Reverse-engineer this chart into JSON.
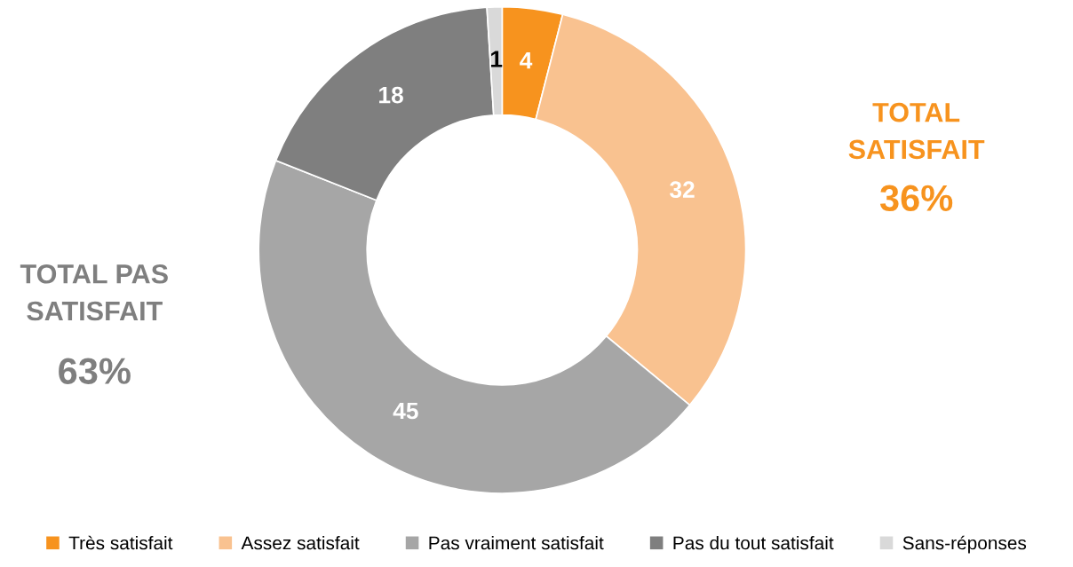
{
  "chart_data": {
    "type": "donut",
    "categories": [
      "Très satisfait",
      "Assez satisfait",
      "Pas vraiment satisfait",
      "Pas du tout satisfait",
      "Sans-réponses"
    ],
    "values": [
      4,
      32,
      45,
      18,
      1
    ],
    "colors": [
      "#f7931e",
      "#f9c290",
      "#a6a6a6",
      "#7f7f7f",
      "#d9d9d9"
    ],
    "data_labels": true,
    "legend": "bottom",
    "annotations": [
      "TOTAL\nSATISFAIT",
      "36%",
      "TOTAL PAS\nSATISFAIT",
      "63%"
    ]
  }
}
